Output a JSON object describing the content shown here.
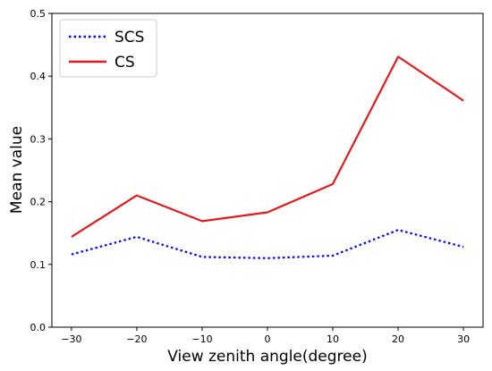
{
  "chart_data": {
    "type": "line",
    "xlabel": "View zenith angle(degree)",
    "ylabel": "Mean value",
    "x": [
      -30,
      -20,
      -10,
      0,
      10,
      20,
      30
    ],
    "xlim": [
      -33,
      33
    ],
    "ylim": [
      0.0,
      0.5
    ],
    "xticks": [
      "−30",
      "−20",
      "−10",
      "0",
      "10",
      "20",
      "30"
    ],
    "xtick_values": [
      -30,
      -20,
      -10,
      0,
      10,
      20,
      30
    ],
    "yticks": [
      "0.0",
      "0.1",
      "0.2",
      "0.3",
      "0.4",
      "0.5"
    ],
    "ytick_values": [
      0.0,
      0.1,
      0.2,
      0.3,
      0.4,
      0.5
    ],
    "grid": false,
    "legend_position": "top-left",
    "series": [
      {
        "name": "SCS",
        "values": [
          0.116,
          0.144,
          0.112,
          0.11,
          0.114,
          0.155,
          0.128
        ],
        "color": "#0000ff",
        "style": "dotted"
      },
      {
        "name": "CS",
        "values": [
          0.144,
          0.21,
          0.169,
          0.183,
          0.228,
          0.431,
          0.361
        ],
        "color": "#e31a1c",
        "style": "solid"
      }
    ]
  }
}
